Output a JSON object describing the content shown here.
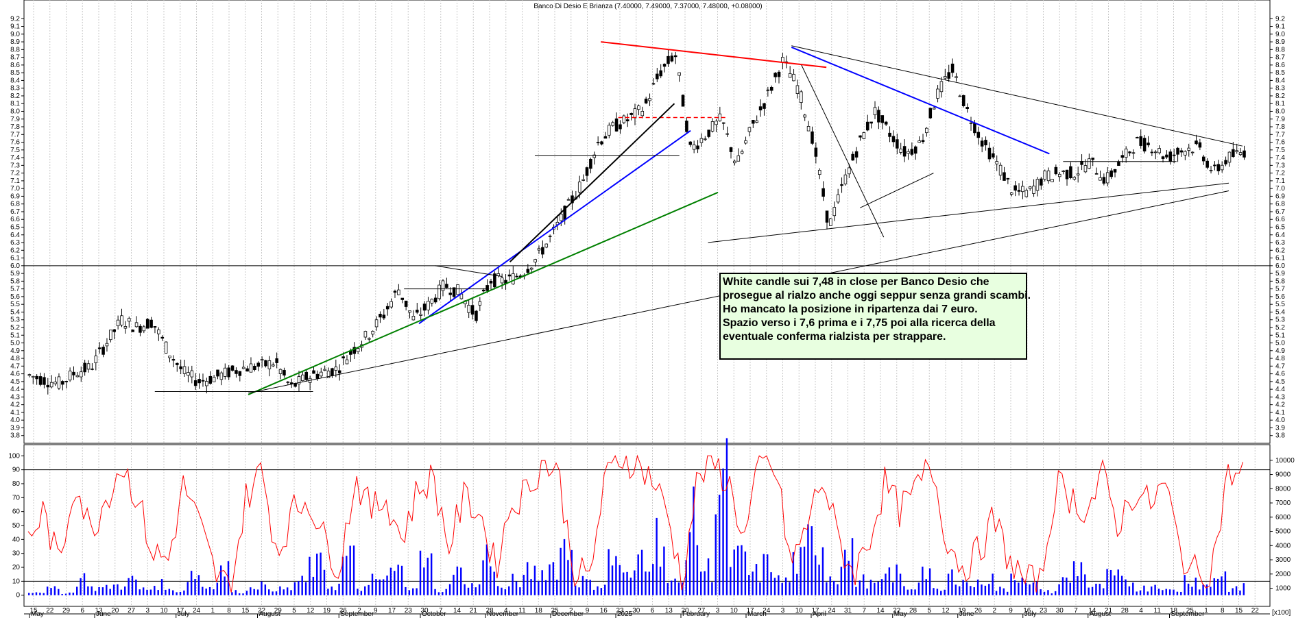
{
  "chart_data": [
    {
      "type": "candlestick",
      "title": "Banco Di Desio E Brianza (7.40000, 7.49000, 7.37000, 7.48000, +0.08000)",
      "last": {
        "open": 7.4,
        "high": 7.49,
        "low": 7.37,
        "close": 7.48,
        "change": 0.08
      },
      "ylim": [
        3.7,
        9.3
      ],
      "y_ticks": [
        "3.8",
        "3.9",
        "4.0",
        "4.1",
        "4.2",
        "4.3",
        "4.4",
        "4.5",
        "4.6",
        "4.7",
        "4.8",
        "4.9",
        "5.0",
        "5.1",
        "5.2",
        "5.3",
        "5.4",
        "5.5",
        "5.6",
        "5.7",
        "5.8",
        "5.9",
        "6.0",
        "6.1",
        "6.2",
        "6.3",
        "6.4",
        "6.5",
        "6.6",
        "6.7",
        "6.8",
        "6.9",
        "7.0",
        "7.1",
        "7.2",
        "7.3",
        "7.4",
        "7.5",
        "7.6",
        "7.7",
        "7.8",
        "7.9",
        "8.0",
        "8.1",
        "8.2",
        "8.3",
        "8.4",
        "8.5",
        "8.6",
        "8.7",
        "8.8",
        "8.9",
        "9.0",
        "9.1",
        "9.2"
      ],
      "close_path": [
        [
          "2024-05-08",
          4.58
        ],
        [
          "2024-05-15",
          4.52
        ],
        [
          "2024-05-22",
          4.47
        ],
        [
          "2024-05-29",
          4.62
        ],
        [
          "2024-06-05",
          4.68
        ],
        [
          "2024-06-13",
          5.0
        ],
        [
          "2024-06-20",
          5.3
        ],
        [
          "2024-06-27",
          5.2
        ],
        [
          "2024-07-04",
          5.28
        ],
        [
          "2024-07-10",
          4.9
        ],
        [
          "2024-07-17",
          4.62
        ],
        [
          "2024-07-24",
          4.5
        ],
        [
          "2024-07-31",
          4.55
        ],
        [
          "2024-08-07",
          4.62
        ],
        [
          "2024-08-14",
          4.68
        ],
        [
          "2024-08-21",
          4.7
        ],
        [
          "2024-08-28",
          4.75
        ],
        [
          "2024-09-03",
          4.42
        ],
        [
          "2024-09-10",
          4.55
        ],
        [
          "2024-09-17",
          4.62
        ],
        [
          "2024-09-24",
          4.66
        ],
        [
          "2024-10-01",
          4.9
        ],
        [
          "2024-10-08",
          5.1
        ],
        [
          "2024-10-15",
          5.35
        ],
        [
          "2024-10-22",
          5.7
        ],
        [
          "2024-10-29",
          5.3
        ],
        [
          "2024-11-05",
          5.5
        ],
        [
          "2024-11-12",
          5.75
        ],
        [
          "2024-11-19",
          5.65
        ],
        [
          "2024-11-26",
          5.35
        ],
        [
          "2024-12-03",
          5.82
        ],
        [
          "2024-12-10",
          5.8
        ],
        [
          "2024-12-17",
          5.9
        ],
        [
          "2024-12-24",
          6.1
        ],
        [
          "2024-12-31",
          6.4
        ],
        [
          "2025-01-08",
          6.75
        ],
        [
          "2025-01-15",
          7.1
        ],
        [
          "2025-01-22",
          7.6
        ],
        [
          "2025-01-29",
          7.8
        ],
        [
          "2025-02-05",
          7.9
        ],
        [
          "2025-02-12",
          8.05
        ],
        [
          "2025-02-19",
          8.5
        ],
        [
          "2025-02-24",
          8.75
        ],
        [
          "2025-03-03",
          7.5
        ],
        [
          "2025-03-10",
          7.7
        ],
        [
          "2025-03-17",
          7.9
        ],
        [
          "2025-03-24",
          7.3
        ],
        [
          "2025-03-31",
          7.8
        ],
        [
          "2025-04-07",
          8.2
        ],
        [
          "2025-04-14",
          8.65
        ],
        [
          "2025-04-21",
          8.3
        ],
        [
          "2025-04-28",
          7.6
        ],
        [
          "2025-05-05",
          6.5
        ],
        [
          "2025-05-12",
          7.1
        ],
        [
          "2025-05-19",
          7.6
        ],
        [
          "2025-05-26",
          8.0
        ],
        [
          "2025-06-02",
          7.7
        ],
        [
          "2025-06-09",
          7.45
        ],
        [
          "2025-06-16",
          7.6
        ],
        [
          "2025-06-23",
          8.2
        ],
        [
          "2025-06-30",
          8.55
        ],
        [
          "2025-07-07",
          8.0
        ],
        [
          "2025-07-14",
          7.6
        ],
        [
          "2025-07-21",
          7.3
        ],
        [
          "2025-07-28",
          6.95
        ],
        [
          "2025-08-04",
          6.95
        ],
        [
          "2025-08-11",
          7.15
        ],
        [
          "2025-08-18",
          7.2
        ],
        [
          "2025-08-25",
          7.2
        ],
        [
          "2025-09-01",
          7.35
        ],
        [
          "2025-09-08",
          7.1
        ],
        [
          "2025-09-15",
          7.35
        ],
        [
          "2025-09-22",
          7.6
        ],
        [
          "2025-09-29",
          7.55
        ],
        [
          "2025-10-06",
          7.4
        ],
        [
          "2025-10-13",
          7.5
        ],
        [
          "2025-10-20",
          7.55
        ],
        [
          "2025-10-27",
          7.2
        ],
        [
          "2025-11-03",
          7.4
        ],
        [
          "2025-11-10",
          7.48
        ]
      ]
    },
    {
      "type": "line+bar",
      "ylim": [
        -8,
        108
      ],
      "left_ticks": [
        "0",
        "10",
        "20",
        "30",
        "40",
        "50",
        "60",
        "70",
        "80",
        "90",
        "100"
      ],
      "right_ticks": [
        "1000",
        "2000",
        "3000",
        "4000",
        "5000",
        "6000",
        "7000",
        "8000",
        "9000",
        "10000"
      ],
      "right_scale_label": "[x100]",
      "hlines": [
        10,
        90
      ],
      "series": [
        {
          "values": [
            40,
            60,
            20,
            85,
            45,
            70,
            95,
            70,
            30,
            25,
            80,
            50,
            15,
            5,
            70,
            90,
            30,
            60,
            70,
            40,
            20,
            85,
            60,
            70,
            40,
            75,
            85,
            35,
            70,
            60,
            20,
            65,
            75,
            95,
            90,
            20,
            10,
            80,
            100,
            95,
            85,
            60,
            10,
            85,
            95,
            80,
            40,
            95,
            90,
            20,
            50,
            85,
            40,
            15,
            40,
            80,
            60,
            75,
            95,
            40,
            20,
            30,
            55,
            25,
            10,
            8,
            80,
            70,
            60,
            85,
            50,
            75,
            65,
            80,
            30,
            15,
            20,
            85,
            88
          ]
        },
        {
          "values": [
            3,
            5,
            2,
            14,
            6,
            8,
            12,
            5,
            9,
            4,
            18,
            7,
            22,
            3,
            9,
            6,
            5,
            11,
            24,
            8,
            30,
            6,
            13,
            20,
            9,
            27,
            4,
            18,
            8,
            33,
            6,
            12,
            19,
            25,
            40,
            12,
            9,
            30,
            15,
            35,
            48,
            10,
            60,
            22,
            90,
            30,
            18,
            25,
            12,
            28,
            45,
            17,
            33,
            12,
            9,
            18,
            6,
            20,
            4,
            16,
            9,
            14,
            5,
            19,
            8,
            3,
            12,
            24,
            7,
            15,
            11,
            6,
            9,
            4,
            14,
            8,
            17,
            5,
            10
          ]
        }
      ]
    }
  ],
  "x_axis": {
    "day_ticks": [
      "15",
      "22",
      "29",
      "6",
      "13",
      "20",
      "27",
      "3",
      "10",
      "17",
      "24",
      "1",
      "8",
      "15",
      "22",
      "29",
      "5",
      "12",
      "19",
      "26",
      "2",
      "9",
      "17",
      "23",
      "30",
      "7",
      "14",
      "21",
      "28",
      "4",
      "11",
      "18",
      "25",
      "2",
      "9",
      "16",
      "23",
      "30",
      "6",
      "13",
      "20",
      "27",
      "3",
      "10",
      "17",
      "24",
      "3",
      "10",
      "17",
      "24",
      "31",
      "7",
      "14",
      "22",
      "28",
      "5",
      "12",
      "19",
      "26",
      "2",
      "9",
      "16",
      "23",
      "30",
      "7",
      "14",
      "21",
      "28",
      "4",
      "11",
      "18",
      "25",
      "1",
      "8",
      "15",
      "22"
    ],
    "month_labels": [
      {
        "label": "May",
        "day": 0
      },
      {
        "label": "June",
        "day": 4
      },
      {
        "label": "July",
        "day": 9
      },
      {
        "label": "August",
        "day": 14
      },
      {
        "label": "September",
        "day": 19
      },
      {
        "label": "October",
        "day": 24
      },
      {
        "label": "November",
        "day": 28
      },
      {
        "label": "December",
        "day": 32
      },
      {
        "label": "2025",
        "day": 36
      },
      {
        "label": "February",
        "day": 40
      },
      {
        "label": "March",
        "day": 44
      },
      {
        "label": "April",
        "day": 48
      },
      {
        "label": "May",
        "day": 53
      },
      {
        "label": "June",
        "day": 57
      },
      {
        "label": "July",
        "day": 61
      },
      {
        "label": "August",
        "day": 65
      },
      {
        "label": "September",
        "day": 70
      }
    ]
  },
  "annotation": {
    "lines": [
      "White candle sui 7,48 in close per Banco Desio che",
      "prosegue al rialzo anche oggi seppur senza grandi scambi.",
      "Ho mancato la posizione in ripartenza dai 7 euro.",
      "Spazio verso i 7,6 prima e i 7,75 poi alla ricerca della",
      "eventuale conferma rialzista per strappare."
    ]
  },
  "colors": {
    "candle": "#000000",
    "rsi": "#ff0000",
    "volume": "#0000ff",
    "grid": "#c8c8c8",
    "trend_red": "#ff0000",
    "trend_blue": "#0000ff",
    "trend_green": "#008000",
    "trend_black": "#000000",
    "note_bg": "#e8ffe0"
  }
}
